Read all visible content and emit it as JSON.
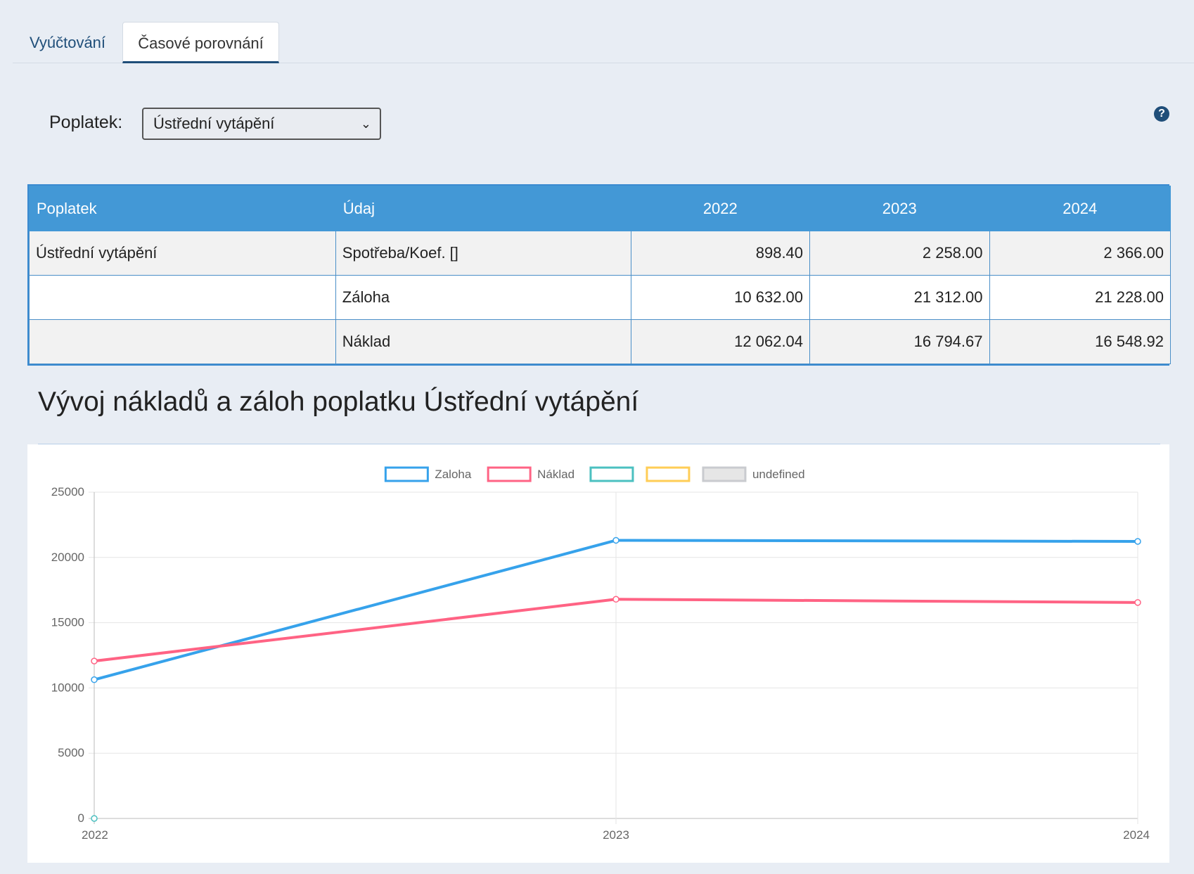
{
  "tabs": [
    {
      "label": "Vyúčtování",
      "active": false
    },
    {
      "label": "Časové porovnání",
      "active": true
    }
  ],
  "filter": {
    "label": "Poplatek:",
    "selected": "Ústřední vytápění"
  },
  "help": {
    "icon": "question-circle-icon",
    "glyph": "?"
  },
  "table": {
    "headers": [
      "Poplatek",
      "Údaj",
      "2022",
      "2023",
      "2024"
    ],
    "rows": [
      [
        "Ústřední vytápění",
        "Spotřeba/Koef. []",
        "898.40",
        "2 258.00",
        "2 366.00"
      ],
      [
        "",
        "Záloha",
        "10 632.00",
        "21 312.00",
        "21 228.00"
      ],
      [
        "",
        "Náklad",
        "12 062.04",
        "16 794.67",
        "16 548.92"
      ]
    ]
  },
  "chart_title": "Vývoj nákladů a záloh poplatku Ústřední vytápění",
  "chart_data": {
    "type": "line",
    "x": [
      "2022",
      "2023",
      "2024"
    ],
    "ylim": [
      0,
      25000
    ],
    "yticks": [
      0,
      5000,
      10000,
      15000,
      20000,
      25000
    ],
    "grid": true,
    "legend_position": "top",
    "series": [
      {
        "name": "Zaloha",
        "color": "#36a2eb",
        "values": [
          10632,
          21312,
          21228
        ]
      },
      {
        "name": "Náklad",
        "color": "#ff6384",
        "values": [
          12062.04,
          16794.67,
          16548.92
        ]
      },
      {
        "name": "",
        "color": "#4bc0c0",
        "values": [
          0,
          null,
          null
        ]
      },
      {
        "name": "",
        "color": "#ffcd56",
        "values": [
          null,
          null,
          null
        ]
      },
      {
        "name": "undefined",
        "color": "#c9cbcf",
        "values": [
          null,
          null,
          null
        ]
      }
    ]
  }
}
